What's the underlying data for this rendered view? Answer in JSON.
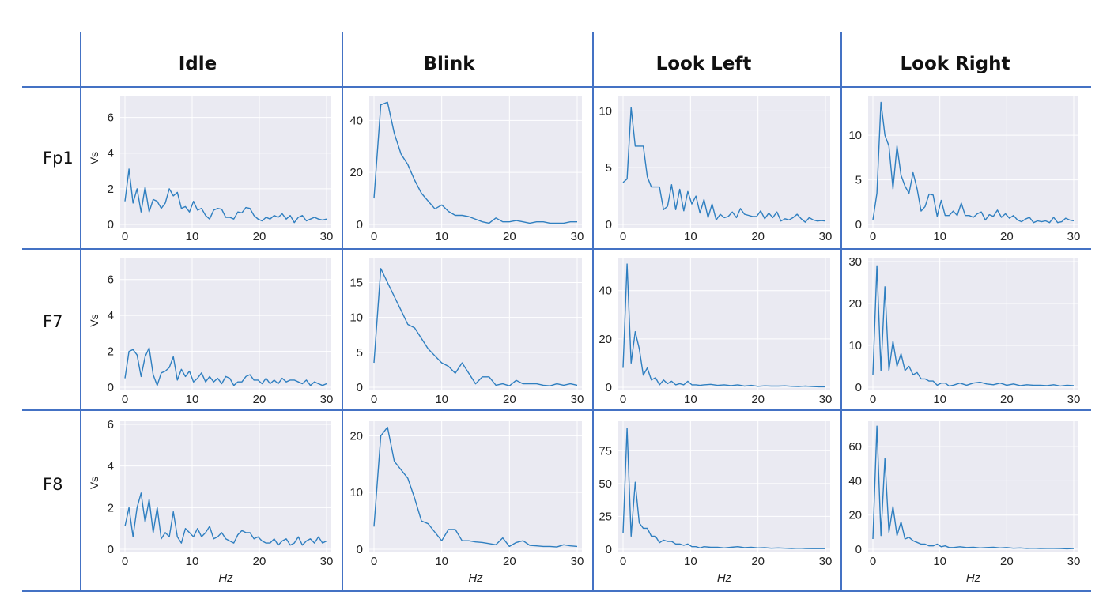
{
  "columns": [
    "Idle",
    "Blink",
    "Look Left",
    "Look Right"
  ],
  "rows": [
    "Fp1",
    "F7",
    "F8"
  ],
  "colors": {
    "line": "#2f7fc0",
    "panel_bg": "#eaeaf2",
    "grid": "#ffffff",
    "divider": "#4472c4"
  },
  "chart_data": [
    {
      "type": "line",
      "row": "Fp1",
      "col": "Idle",
      "ylabel": "Vs",
      "xlabel": "",
      "xlim": [
        0,
        30
      ],
      "ylim": [
        0,
        7
      ],
      "xticks": [
        0,
        10,
        20,
        30
      ],
      "yticks": [
        0,
        2,
        4,
        6
      ],
      "x": [
        0,
        0.6,
        1.2,
        1.8,
        2.4,
        3,
        3.6,
        4.2,
        4.8,
        5.4,
        6,
        6.6,
        7.2,
        7.8,
        8.4,
        9,
        9.6,
        10.2,
        10.8,
        11.4,
        12,
        12.6,
        13.2,
        13.8,
        14.4,
        15,
        15.6,
        16.2,
        16.8,
        17.4,
        18,
        18.6,
        19.2,
        19.8,
        20.4,
        21,
        21.6,
        22.2,
        22.8,
        23.4,
        24,
        24.6,
        25.2,
        25.8,
        26.4,
        27,
        27.6,
        28.2,
        28.8,
        29.4,
        30
      ],
      "y": [
        1.3,
        3.1,
        1.2,
        2.0,
        0.7,
        2.1,
        0.7,
        1.4,
        1.3,
        0.9,
        1.2,
        2.0,
        1.6,
        1.8,
        0.9,
        1.0,
        0.7,
        1.3,
        0.8,
        0.9,
        0.5,
        0.3,
        0.8,
        0.9,
        0.85,
        0.4,
        0.4,
        0.3,
        0.7,
        0.65,
        0.95,
        0.9,
        0.5,
        0.3,
        0.2,
        0.4,
        0.3,
        0.5,
        0.4,
        0.6,
        0.3,
        0.5,
        0.1,
        0.4,
        0.5,
        0.2,
        0.3,
        0.4,
        0.3,
        0.25,
        0.3
      ]
    },
    {
      "type": "line",
      "row": "Fp1",
      "col": "Blink",
      "ylabel": "",
      "xlabel": "",
      "xlim": [
        0,
        30
      ],
      "ylim": [
        0,
        48
      ],
      "xticks": [
        0,
        10,
        20,
        30
      ],
      "yticks": [
        0,
        20,
        40
      ],
      "x": [
        0,
        1,
        2,
        3,
        4,
        5,
        6,
        7,
        8,
        9,
        10,
        11,
        12,
        13,
        14,
        15,
        16,
        17,
        18,
        19,
        20,
        21,
        22,
        23,
        24,
        25,
        26,
        27,
        28,
        29,
        30
      ],
      "y": [
        10,
        46,
        47,
        35,
        27,
        23,
        17,
        12,
        9,
        6,
        7.5,
        5,
        3.5,
        3.5,
        3,
        2,
        1,
        0.5,
        2.5,
        1,
        1,
        1.5,
        1,
        0.5,
        1,
        1,
        0.5,
        0.5,
        0.5,
        1,
        1
      ]
    },
    {
      "type": "line",
      "row": "Fp1",
      "col": "Look Left",
      "ylabel": "",
      "xlabel": "",
      "xlim": [
        0,
        30
      ],
      "ylim": [
        0,
        11
      ],
      "xticks": [
        0,
        10,
        20,
        30
      ],
      "yticks": [
        0,
        5,
        10
      ],
      "x": [
        0,
        0.6,
        1.2,
        1.8,
        2.4,
        3,
        3.6,
        4.2,
        4.8,
        5.4,
        6,
        6.6,
        7.2,
        7.8,
        8.4,
        9,
        9.6,
        10.2,
        10.8,
        11.4,
        12,
        12.6,
        13.2,
        13.8,
        14.4,
        15,
        15.6,
        16.2,
        16.8,
        17.4,
        18,
        18.6,
        19.2,
        19.8,
        20.4,
        21,
        21.6,
        22.2,
        22.8,
        23.4,
        24,
        24.6,
        25.2,
        25.8,
        26.4,
        27,
        27.6,
        28.2,
        28.8,
        29.4,
        30
      ],
      "y": [
        3.7,
        4.0,
        10.3,
        6.9,
        6.9,
        6.9,
        4.2,
        3.3,
        3.3,
        3.3,
        1.3,
        1.6,
        3.5,
        1.3,
        3.1,
        1.2,
        2.9,
        1.8,
        2.5,
        1.0,
        2.2,
        0.6,
        1.8,
        0.4,
        0.9,
        0.6,
        0.7,
        1.1,
        0.6,
        1.4,
        0.9,
        0.8,
        0.7,
        0.7,
        1.2,
        0.5,
        1.0,
        0.6,
        1.1,
        0.3,
        0.5,
        0.4,
        0.6,
        0.9,
        0.5,
        0.2,
        0.6,
        0.4,
        0.3,
        0.35,
        0.3
      ]
    },
    {
      "type": "line",
      "row": "Fp1",
      "col": "Look Right",
      "ylabel": "",
      "xlabel": "",
      "xlim": [
        0,
        30
      ],
      "ylim": [
        0,
        14
      ],
      "xticks": [
        0,
        10,
        20,
        30
      ],
      "yticks": [
        0,
        5,
        10
      ],
      "x": [
        0,
        0.6,
        1.2,
        1.8,
        2.4,
        3,
        3.6,
        4.2,
        4.8,
        5.4,
        6,
        6.6,
        7.2,
        7.8,
        8.4,
        9,
        9.6,
        10.2,
        10.8,
        11.4,
        12,
        12.6,
        13.2,
        13.8,
        14.4,
        15,
        15.6,
        16.2,
        16.8,
        17.4,
        18,
        18.6,
        19.2,
        19.8,
        20.4,
        21,
        21.6,
        22.2,
        22.8,
        23.4,
        24,
        24.6,
        25.2,
        25.8,
        26.4,
        27,
        27.6,
        28.2,
        28.8,
        29.4,
        30
      ],
      "y": [
        0.5,
        3.5,
        13.7,
        10.0,
        8.8,
        4.0,
        8.8,
        5.5,
        4.3,
        3.5,
        5.8,
        4.0,
        1.5,
        2.0,
        3.4,
        3.3,
        0.9,
        2.7,
        1.0,
        1.0,
        1.5,
        1.0,
        2.4,
        1.0,
        1.0,
        0.8,
        1.2,
        1.4,
        0.5,
        1.1,
        0.9,
        1.6,
        0.8,
        1.2,
        0.7,
        1.0,
        0.5,
        0.3,
        0.6,
        0.8,
        0.2,
        0.4,
        0.3,
        0.4,
        0.2,
        0.8,
        0.2,
        0.3,
        0.7,
        0.5,
        0.4
      ]
    },
    {
      "type": "line",
      "row": "F7",
      "col": "Idle",
      "ylabel": "Vs",
      "xlabel": "",
      "xlim": [
        0,
        30
      ],
      "ylim": [
        0,
        7
      ],
      "xticks": [
        0,
        10,
        20,
        30
      ],
      "yticks": [
        0,
        2,
        4,
        6
      ],
      "x": [
        0,
        0.6,
        1.2,
        1.8,
        2.4,
        3,
        3.6,
        4.2,
        4.8,
        5.4,
        6,
        6.6,
        7.2,
        7.8,
        8.4,
        9,
        9.6,
        10.2,
        10.8,
        11.4,
        12,
        12.6,
        13.2,
        13.8,
        14.4,
        15,
        15.6,
        16.2,
        16.8,
        17.4,
        18,
        18.6,
        19.2,
        19.8,
        20.4,
        21,
        21.6,
        22.2,
        22.8,
        23.4,
        24,
        24.6,
        25.2,
        25.8,
        26.4,
        27,
        27.6,
        28.2,
        28.8,
        29.4,
        30
      ],
      "y": [
        0.5,
        2.0,
        2.1,
        1.8,
        0.6,
        1.7,
        2.2,
        0.7,
        0.1,
        0.8,
        0.9,
        1.1,
        1.7,
        0.4,
        1.0,
        0.6,
        0.9,
        0.3,
        0.5,
        0.8,
        0.3,
        0.6,
        0.3,
        0.5,
        0.2,
        0.6,
        0.5,
        0.1,
        0.3,
        0.3,
        0.6,
        0.7,
        0.4,
        0.4,
        0.2,
        0.5,
        0.2,
        0.4,
        0.2,
        0.5,
        0.3,
        0.4,
        0.4,
        0.3,
        0.2,
        0.4,
        0.1,
        0.3,
        0.2,
        0.1,
        0.2
      ]
    },
    {
      "type": "line",
      "row": "F7",
      "col": "Blink",
      "ylabel": "",
      "xlabel": "",
      "xlim": [
        0,
        30
      ],
      "ylim": [
        0,
        18
      ],
      "xticks": [
        0,
        10,
        20,
        30
      ],
      "yticks": [
        0,
        5,
        10,
        15
      ],
      "x": [
        0,
        1,
        2,
        3,
        4,
        5,
        6,
        7,
        8,
        9,
        10,
        11,
        12,
        13,
        14,
        15,
        16,
        17,
        18,
        19,
        20,
        21,
        22,
        23,
        24,
        25,
        26,
        27,
        28,
        29,
        30
      ],
      "y": [
        3.5,
        17,
        15,
        13,
        11,
        9,
        8.5,
        7,
        5.5,
        4.5,
        3.5,
        3,
        2,
        3.5,
        2,
        0.5,
        1.5,
        1.5,
        0.3,
        0.5,
        0.2,
        1,
        0.5,
        0.5,
        0.5,
        0.3,
        0.2,
        0.5,
        0.3,
        0.5,
        0.3
      ]
    },
    {
      "type": "line",
      "row": "F7",
      "col": "Look Left",
      "ylabel": "",
      "xlabel": "",
      "xlim": [
        0,
        30
      ],
      "ylim": [
        0,
        52
      ],
      "xticks": [
        0,
        10,
        20,
        30
      ],
      "yticks": [
        0,
        20,
        40
      ],
      "x": [
        0,
        0.6,
        1.2,
        1.8,
        2.4,
        3,
        3.6,
        4.2,
        4.8,
        5.4,
        6,
        6.6,
        7.2,
        7.8,
        8.4,
        9,
        9.6,
        10.2,
        10.8,
        11.4,
        12,
        13,
        14,
        15,
        16,
        17,
        18,
        19,
        20,
        21,
        22,
        23,
        24,
        25,
        26,
        27,
        28,
        29,
        30
      ],
      "y": [
        8,
        51,
        10,
        23,
        16,
        5,
        8,
        3,
        4,
        1,
        3,
        1.5,
        2.5,
        1,
        1.5,
        1,
        2.5,
        1,
        1,
        0.8,
        1,
        1.2,
        0.8,
        1,
        0.7,
        1,
        0.5,
        0.8,
        0.4,
        0.6,
        0.5,
        0.5,
        0.6,
        0.4,
        0.3,
        0.5,
        0.3,
        0.2,
        0.2
      ]
    },
    {
      "type": "line",
      "row": "F7",
      "col": "Look Right",
      "ylabel": "",
      "xlabel": "",
      "xlim": [
        0,
        30
      ],
      "ylim": [
        0,
        30
      ],
      "xticks": [
        0,
        10,
        20,
        30
      ],
      "yticks": [
        0,
        10,
        20,
        30
      ],
      "x": [
        0,
        0.6,
        1.2,
        1.8,
        2.4,
        3,
        3.6,
        4.2,
        4.8,
        5.4,
        6,
        6.6,
        7.2,
        7.8,
        8.4,
        9,
        9.6,
        10.2,
        10.8,
        11.4,
        12,
        13,
        14,
        15,
        16,
        17,
        18,
        19,
        20,
        21,
        22,
        23,
        24,
        25,
        26,
        27,
        28,
        29,
        30
      ],
      "y": [
        3,
        29,
        4,
        24,
        4,
        11,
        5,
        8,
        4,
        5,
        3,
        3.5,
        2,
        2,
        1.5,
        1.5,
        0.5,
        1,
        1,
        0.3,
        0.5,
        1,
        0.5,
        1,
        1.2,
        0.8,
        0.6,
        1,
        0.5,
        0.8,
        0.4,
        0.6,
        0.5,
        0.5,
        0.4,
        0.6,
        0.3,
        0.5,
        0.4
      ]
    },
    {
      "type": "line",
      "row": "F8",
      "col": "Idle",
      "ylabel": "Vs",
      "xlabel": "Hz",
      "xlim": [
        0,
        30
      ],
      "ylim": [
        0,
        6
      ],
      "xticks": [
        0,
        10,
        20,
        30
      ],
      "yticks": [
        0,
        2,
        4,
        6
      ],
      "x": [
        0,
        0.6,
        1.2,
        1.8,
        2.4,
        3,
        3.6,
        4.2,
        4.8,
        5.4,
        6,
        6.6,
        7.2,
        7.8,
        8.4,
        9,
        9.6,
        10.2,
        10.8,
        11.4,
        12,
        12.6,
        13.2,
        13.8,
        14.4,
        15,
        15.6,
        16.2,
        16.8,
        17.4,
        18,
        18.6,
        19.2,
        19.8,
        20.4,
        21,
        21.6,
        22.2,
        22.8,
        23.4,
        24,
        24.6,
        25.2,
        25.8,
        26.4,
        27,
        27.6,
        28.2,
        28.8,
        29.4,
        30
      ],
      "y": [
        1.1,
        2.0,
        0.6,
        2.0,
        2.7,
        1.3,
        2.4,
        0.8,
        2.0,
        0.5,
        0.8,
        0.6,
        1.8,
        0.6,
        0.3,
        1.0,
        0.8,
        0.6,
        1.0,
        0.6,
        0.8,
        1.1,
        0.5,
        0.6,
        0.8,
        0.5,
        0.4,
        0.3,
        0.7,
        0.9,
        0.8,
        0.8,
        0.5,
        0.6,
        0.4,
        0.3,
        0.3,
        0.5,
        0.2,
        0.4,
        0.5,
        0.2,
        0.3,
        0.6,
        0.2,
        0.4,
        0.5,
        0.3,
        0.6,
        0.3,
        0.4
      ]
    },
    {
      "type": "line",
      "row": "F8",
      "col": "Blink",
      "ylabel": "",
      "xlabel": "Hz",
      "xlim": [
        0,
        30
      ],
      "ylim": [
        0,
        22
      ],
      "xticks": [
        0,
        10,
        20,
        30
      ],
      "yticks": [
        0,
        10,
        20
      ],
      "x": [
        0,
        1,
        2,
        3,
        4,
        5,
        6,
        7,
        8,
        9,
        10,
        11,
        12,
        13,
        14,
        15,
        16,
        17,
        18,
        19,
        20,
        21,
        22,
        23,
        24,
        25,
        26,
        27,
        28,
        29,
        30
      ],
      "y": [
        4,
        20,
        21.5,
        15.5,
        14,
        12.5,
        9,
        5,
        4.5,
        3,
        1.5,
        3.5,
        3.5,
        1.5,
        1.5,
        1.3,
        1.2,
        1,
        0.8,
        2,
        0.5,
        1.2,
        1.5,
        0.7,
        0.6,
        0.5,
        0.5,
        0.4,
        0.8,
        0.6,
        0.5
      ]
    },
    {
      "type": "line",
      "row": "F8",
      "col": "Look Left",
      "ylabel": "",
      "xlabel": "Hz",
      "xlim": [
        0,
        30
      ],
      "ylim": [
        0,
        95
      ],
      "xticks": [
        0,
        10,
        20,
        30
      ],
      "yticks": [
        0,
        25,
        50,
        75
      ],
      "x": [
        0,
        0.6,
        1.2,
        1.8,
        2.4,
        3,
        3.6,
        4.2,
        4.8,
        5.4,
        6,
        6.6,
        7.2,
        7.8,
        8.4,
        9,
        9.6,
        10.2,
        10.8,
        11.4,
        12,
        13,
        14,
        15,
        16,
        17,
        18,
        19,
        20,
        21,
        22,
        23,
        24,
        25,
        26,
        27,
        28,
        29,
        30
      ],
      "y": [
        12,
        92,
        10,
        51,
        20,
        16,
        16,
        10,
        10,
        5,
        7,
        6,
        6,
        4,
        4,
        3,
        4,
        2,
        2,
        1,
        2,
        1.5,
        1.5,
        1,
        1.5,
        2,
        1.2,
        1.5,
        1,
        1.2,
        0.8,
        1,
        0.8,
        0.6,
        0.8,
        0.6,
        0.5,
        0.5,
        0.5
      ]
    },
    {
      "type": "line",
      "row": "F8",
      "col": "Look Right",
      "ylabel": "",
      "xlabel": "Hz",
      "xlim": [
        0,
        30
      ],
      "ylim": [
        0,
        73
      ],
      "xticks": [
        0,
        10,
        20,
        30
      ],
      "yticks": [
        0,
        20,
        40,
        60
      ],
      "x": [
        0,
        0.6,
        1.2,
        1.8,
        2.4,
        3,
        3.6,
        4.2,
        4.8,
        5.4,
        6,
        6.6,
        7.2,
        7.8,
        8.4,
        9,
        9.6,
        10.2,
        10.8,
        11.4,
        12,
        13,
        14,
        15,
        16,
        17,
        18,
        19,
        20,
        21,
        22,
        23,
        24,
        25,
        26,
        27,
        28,
        29,
        30
      ],
      "y": [
        6,
        72,
        8,
        53,
        10,
        25,
        8,
        16,
        6,
        7,
        5,
        4,
        3,
        3,
        2,
        2,
        3,
        1.5,
        2,
        1,
        1,
        1.5,
        1,
        1.2,
        0.8,
        1,
        1.2,
        0.8,
        1,
        0.6,
        0.8,
        0.5,
        0.6,
        0.4,
        0.5,
        0.5,
        0.4,
        0.3,
        0.4
      ]
    }
  ]
}
